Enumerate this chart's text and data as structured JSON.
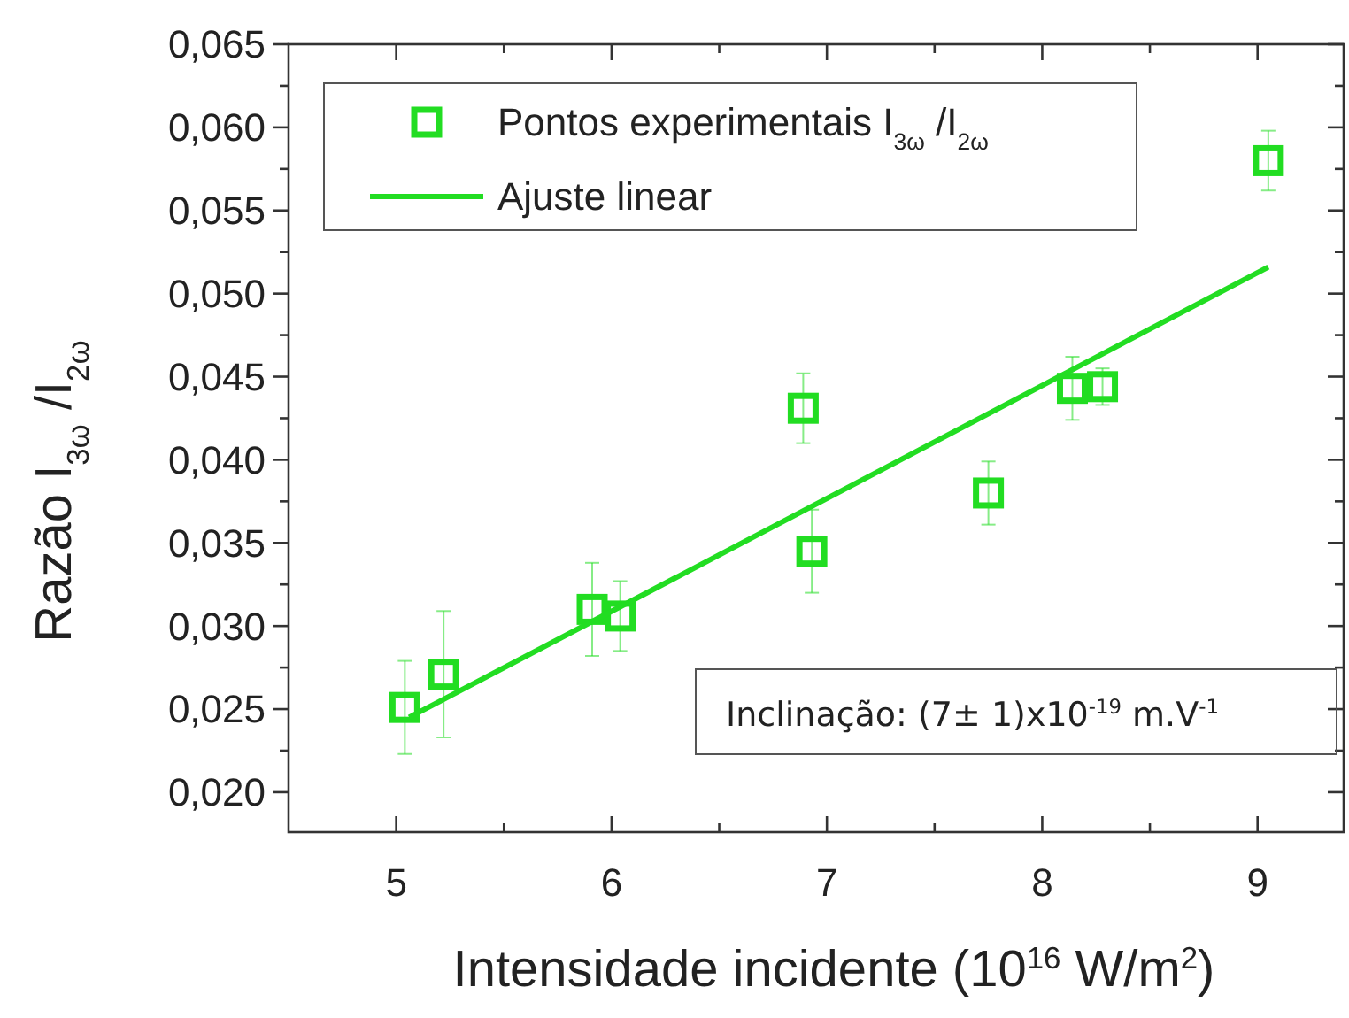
{
  "chart_data": {
    "type": "scatter",
    "xlabel": "Intensidade incidente (10$^{16}$ W/m$^{2}$)",
    "ylabel": "Razão I$_{3ω}$ /I$_{2ω}$",
    "xlim": [
      4.5,
      9.4
    ],
    "ylim": [
      0.0176,
      0.065
    ],
    "xticks": [
      5,
      {
        "value": 5.5,
        "label": null
      },
      6,
      {
        "value": 6.5,
        "label": null
      },
      7,
      {
        "value": 7.5,
        "label": null
      },
      8,
      {
        "value": 8.5,
        "label": null
      },
      9
    ],
    "yticks": [
      {
        "value": 0.02,
        "label": "0,020"
      },
      {
        "value": 0.0225,
        "label": null
      },
      {
        "value": 0.025,
        "label": "0,025"
      },
      {
        "value": 0.0275,
        "label": null
      },
      {
        "value": 0.03,
        "label": "0,030"
      },
      {
        "value": 0.0325,
        "label": null
      },
      {
        "value": 0.035,
        "label": "0,035"
      },
      {
        "value": 0.0375,
        "label": null
      },
      {
        "value": 0.04,
        "label": "0,040"
      },
      {
        "value": 0.0425,
        "label": null
      },
      {
        "value": 0.045,
        "label": "0,045"
      },
      {
        "value": 0.0475,
        "label": null
      },
      {
        "value": 0.05,
        "label": "0,050"
      },
      {
        "value": 0.0525,
        "label": null
      },
      {
        "value": 0.055,
        "label": "0,055"
      },
      {
        "value": 0.0575,
        "label": null
      },
      {
        "value": 0.06,
        "label": "0,060"
      },
      {
        "value": 0.0625,
        "label": null
      },
      {
        "value": 0.065,
        "label": "0,065"
      }
    ],
    "legend": "top left",
    "grid": false,
    "series": [
      {
        "name": "Pontos experimentais I$_{3ω}$ /I$_{2ω}$",
        "color": "#22dd22",
        "marker": "square",
        "x": [
          5.04,
          5.22,
          5.91,
          6.04,
          6.89,
          6.93,
          7.75,
          8.14,
          8.28,
          9.05
        ],
        "values": [
          0.0251,
          0.0271,
          0.031,
          0.0306,
          0.0431,
          0.0345,
          0.038,
          0.0443,
          0.0444,
          0.058
        ],
        "errors": [
          0.0028,
          0.0038,
          0.0028,
          0.0021,
          0.0021,
          0.0025,
          0.0019,
          0.0019,
          0.0011,
          0.0018
        ]
      },
      {
        "type": "line",
        "name": "Ajuste linear",
        "color": "#22dd22",
        "marker": "none",
        "line_style": "solid",
        "x": [
          5.06,
          9.05
        ],
        "values": [
          0.0245,
          0.0516
        ]
      }
    ],
    "annotations": [
      "Inclinação: (7± 1)x10$^{-19}$ m.V$^{-1}$"
    ]
  }
}
